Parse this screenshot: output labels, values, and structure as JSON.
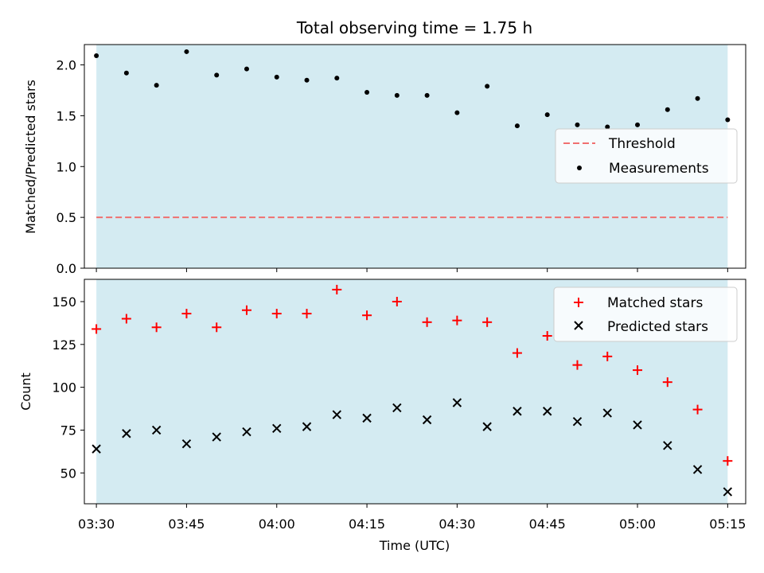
{
  "chart_data": [
    {
      "type": "scatter",
      "title": "Total observing time = 1.75 h",
      "xlabel": "",
      "ylabel": "Matched/Predicted stars",
      "ylim": [
        0,
        2.2
      ],
      "yticks": [
        0,
        0.5,
        1.0,
        1.5,
        2.0
      ],
      "ytick_labels": [
        "0.0",
        "0.5",
        "1.0",
        "1.5",
        "2.0"
      ],
      "shaded_span": [
        "03:30",
        "05:15"
      ],
      "shaded_color": "#add8e6",
      "legend": "center-right",
      "grid": false,
      "series": [
        {
          "name": "Threshold",
          "style": "dashed-line",
          "color": "#f07070",
          "x": [
            "03:30",
            "05:15"
          ],
          "y": [
            0.5,
            0.5
          ]
        },
        {
          "name": "Measurements",
          "style": "dot",
          "color": "#000000",
          "x": [
            "03:30",
            "03:35",
            "03:40",
            "03:45",
            "03:50",
            "03:55",
            "04:00",
            "04:05",
            "04:10",
            "04:15",
            "04:20",
            "04:25",
            "04:30",
            "04:35",
            "04:40",
            "04:45",
            "04:50",
            "04:55",
            "05:00",
            "05:05",
            "05:10",
            "05:15"
          ],
          "y": [
            2.09,
            1.92,
            1.8,
            2.13,
            1.9,
            1.96,
            1.88,
            1.85,
            1.87,
            1.73,
            1.7,
            1.7,
            1.53,
            1.79,
            1.4,
            1.51,
            1.41,
            1.39,
            1.41,
            1.56,
            1.67,
            1.46
          ]
        }
      ]
    },
    {
      "type": "scatter",
      "title": "",
      "xlabel": "Time (UTC)",
      "ylabel": "Count",
      "ylim": [
        32,
        163
      ],
      "yticks": [
        50,
        75,
        100,
        125,
        150
      ],
      "ytick_labels": [
        "50",
        "75",
        "100",
        "125",
        "150"
      ],
      "xticks": [
        "03:30",
        "03:45",
        "04:00",
        "04:15",
        "04:30",
        "04:45",
        "05:00",
        "05:15"
      ],
      "xlim": [
        "03:28",
        "05:18"
      ],
      "shaded_span": [
        "03:30",
        "05:15"
      ],
      "shaded_color": "#add8e6",
      "legend": "top-right",
      "grid": false,
      "series": [
        {
          "name": "Matched stars",
          "style": "plus",
          "color": "#ff0000",
          "x": [
            "03:30",
            "03:35",
            "03:40",
            "03:45",
            "03:50",
            "03:55",
            "04:00",
            "04:05",
            "04:10",
            "04:15",
            "04:20",
            "04:25",
            "04:30",
            "04:35",
            "04:40",
            "04:45",
            "04:50",
            "04:55",
            "05:00",
            "05:05",
            "05:10",
            "05:15"
          ],
          "y": [
            134,
            140,
            135,
            143,
            135,
            145,
            143,
            143,
            157,
            142,
            150,
            138,
            139,
            138,
            120,
            130,
            113,
            118,
            110,
            103,
            87,
            57
          ]
        },
        {
          "name": "Predicted stars",
          "style": "x",
          "color": "#000000",
          "x": [
            "03:30",
            "03:35",
            "03:40",
            "03:45",
            "03:50",
            "03:55",
            "04:00",
            "04:05",
            "04:10",
            "04:15",
            "04:20",
            "04:25",
            "04:30",
            "04:35",
            "04:40",
            "04:45",
            "04:50",
            "04:55",
            "05:00",
            "05:05",
            "05:10",
            "05:15"
          ],
          "y": [
            64,
            73,
            75,
            67,
            71,
            74,
            76,
            77,
            84,
            82,
            88,
            81,
            91,
            77,
            86,
            86,
            80,
            85,
            78,
            66,
            52,
            39
          ]
        }
      ]
    }
  ]
}
